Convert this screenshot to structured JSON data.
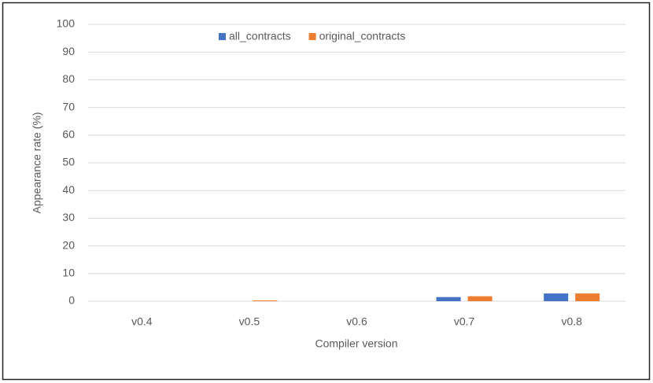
{
  "chart_data": {
    "type": "bar",
    "categories": [
      "v0.4",
      "v0.5",
      "v0.6",
      "v0.7",
      "v0.8"
    ],
    "series": [
      {
        "name": "all_contracts",
        "color": "#4472c4",
        "values": [
          0,
          0,
          0,
          1.5,
          2.8
        ]
      },
      {
        "name": "original_contracts",
        "color": "#ed7d31",
        "values": [
          0,
          0.3,
          0,
          1.8,
          2.8
        ]
      }
    ],
    "x_label": "Compiler version",
    "y_label": "Appearance rate (%)",
    "ylim": [
      0,
      100
    ],
    "yticks": [
      0,
      10,
      20,
      30,
      40,
      50,
      60,
      70,
      80,
      90,
      100
    ],
    "grid": true,
    "legend": "top"
  }
}
